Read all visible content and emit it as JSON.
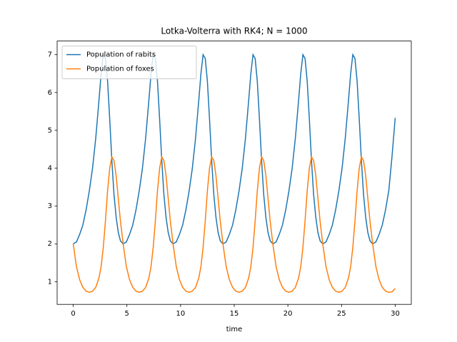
{
  "chart_data": {
    "type": "line",
    "title": "Lotka-Volterra with RK4; N = 1000",
    "x_label": "time",
    "x": [
      0,
      0.3,
      0.6,
      0.9,
      1.2,
      1.5,
      1.8,
      2.1,
      2.4,
      2.6,
      2.8,
      3.0,
      3.2,
      3.4,
      3.6,
      3.8,
      4.0,
      4.2,
      4.4,
      4.65,
      4.95,
      5.25,
      5.55,
      5.85,
      6.15,
      6.45,
      6.75,
      7.05,
      7.25,
      7.45,
      7.65,
      7.85,
      8.05,
      8.25,
      8.45,
      8.65,
      8.85,
      9.05,
      9.3,
      9.6,
      9.9,
      10.2,
      10.5,
      10.8,
      11.1,
      11.4,
      11.7,
      11.9,
      12.1,
      12.3,
      12.5,
      12.7,
      12.9,
      13.1,
      13.3,
      13.5,
      13.7,
      13.95,
      14.25,
      14.55,
      14.85,
      15.15,
      15.45,
      15.75,
      16.05,
      16.35,
      16.55,
      16.75,
      16.95,
      17.15,
      17.35,
      17.55,
      17.75,
      17.95,
      18.15,
      18.35,
      18.6,
      18.9,
      19.2,
      19.5,
      19.8,
      20.1,
      20.4,
      20.7,
      21.0,
      21.2,
      21.4,
      21.6,
      21.8,
      22.0,
      22.2,
      22.4,
      22.6,
      22.8,
      23.0,
      23.25,
      23.55,
      23.85,
      24.15,
      24.45,
      24.75,
      25.05,
      25.35,
      25.65,
      25.85,
      26.05,
      26.25,
      26.45,
      26.65,
      26.85,
      27.05,
      27.25,
      27.45,
      27.65,
      27.9,
      28.2,
      28.5,
      28.8,
      29.1,
      29.4,
      29.7,
      30.0
    ],
    "series": [
      {
        "name": "Population of rabits",
        "color": "#1f77b4",
        "values": [
          2.0,
          2.05,
          2.25,
          2.5,
          2.9,
          3.4,
          4.0,
          4.8,
          5.8,
          6.5,
          7.0,
          6.9,
          6.3,
          5.3,
          4.2,
          3.3,
          2.7,
          2.3,
          2.08,
          2.0,
          2.05,
          2.25,
          2.5,
          2.9,
          3.4,
          4.0,
          4.8,
          5.8,
          6.5,
          7.0,
          6.9,
          6.3,
          5.3,
          4.2,
          3.3,
          2.7,
          2.3,
          2.08,
          2.0,
          2.05,
          2.25,
          2.5,
          2.9,
          3.4,
          4.0,
          4.8,
          5.8,
          6.5,
          7.0,
          6.9,
          6.3,
          5.3,
          4.2,
          3.3,
          2.7,
          2.3,
          2.08,
          2.0,
          2.05,
          2.25,
          2.5,
          2.9,
          3.4,
          4.0,
          4.8,
          5.8,
          6.5,
          7.0,
          6.9,
          6.3,
          5.3,
          4.2,
          3.3,
          2.7,
          2.3,
          2.08,
          2.0,
          2.05,
          2.25,
          2.5,
          2.9,
          3.4,
          4.0,
          4.8,
          5.8,
          6.5,
          7.0,
          6.9,
          6.3,
          5.3,
          4.2,
          3.3,
          2.7,
          2.3,
          2.08,
          2.0,
          2.05,
          2.25,
          2.5,
          2.9,
          3.4,
          4.0,
          4.8,
          5.8,
          6.5,
          7.0,
          6.9,
          6.3,
          5.3,
          4.2,
          3.3,
          2.7,
          2.3,
          2.08,
          2.0,
          2.05,
          2.25,
          2.5,
          2.9,
          3.4,
          4.3,
          5.33
        ]
      },
      {
        "name": "Population of foxes",
        "color": "#ff7f0e",
        "values": [
          2.0,
          1.4,
          1.05,
          0.85,
          0.75,
          0.72,
          0.75,
          0.85,
          1.1,
          1.4,
          1.9,
          2.6,
          3.4,
          4.0,
          4.3,
          4.2,
          3.8,
          3.2,
          2.6,
          2.0,
          1.4,
          1.05,
          0.85,
          0.75,
          0.72,
          0.75,
          0.85,
          1.1,
          1.4,
          1.9,
          2.6,
          3.4,
          4.0,
          4.3,
          4.2,
          3.8,
          3.2,
          2.6,
          2.0,
          1.4,
          1.05,
          0.85,
          0.75,
          0.72,
          0.75,
          0.85,
          1.1,
          1.4,
          1.9,
          2.6,
          3.4,
          4.0,
          4.3,
          4.2,
          3.8,
          3.2,
          2.6,
          2.0,
          1.4,
          1.05,
          0.85,
          0.75,
          0.72,
          0.75,
          0.85,
          1.1,
          1.4,
          1.9,
          2.6,
          3.4,
          4.0,
          4.3,
          4.2,
          3.8,
          3.2,
          2.6,
          2.0,
          1.4,
          1.05,
          0.85,
          0.75,
          0.72,
          0.75,
          0.85,
          1.1,
          1.4,
          1.9,
          2.6,
          3.4,
          4.0,
          4.3,
          4.2,
          3.8,
          3.2,
          2.6,
          2.0,
          1.4,
          1.05,
          0.85,
          0.75,
          0.72,
          0.75,
          0.85,
          1.1,
          1.4,
          1.9,
          2.6,
          3.4,
          4.0,
          4.3,
          4.2,
          3.8,
          3.2,
          2.6,
          2.0,
          1.4,
          1.05,
          0.85,
          0.75,
          0.72,
          0.73,
          0.82
        ]
      }
    ],
    "xlim": [
      -1.5,
      31.5
    ],
    "ylim": [
      0.4,
      7.36
    ],
    "xticks": [
      0,
      5,
      10,
      15,
      20,
      25,
      30
    ],
    "yticks": [
      1,
      2,
      3,
      4,
      5,
      6,
      7
    ],
    "legend": "upper left",
    "grid": false
  }
}
